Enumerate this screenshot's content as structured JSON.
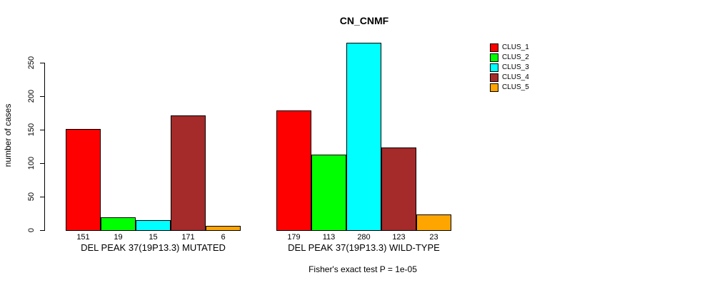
{
  "chart_data": {
    "type": "bar",
    "title": "CN_CNMF",
    "ylabel": "number of cases",
    "xlabel": "",
    "ylim": [
      0,
      250
    ],
    "yticks": [
      0,
      50,
      100,
      150,
      200,
      250
    ],
    "grid": false,
    "legend_position": "right",
    "bar_value_labels": true,
    "categories": [
      "DEL PEAK 37(19P13.3) MUTATED",
      "DEL PEAK 37(19P13.3) WILD-TYPE"
    ],
    "series": [
      {
        "name": "CLUS_1",
        "color": "#FF0000",
        "values": [
          151,
          179
        ]
      },
      {
        "name": "CLUS_2",
        "color": "#00FF00",
        "values": [
          19,
          113
        ]
      },
      {
        "name": "CLUS_3",
        "color": "#00FFFF",
        "values": [
          15,
          280
        ]
      },
      {
        "name": "CLUS_4",
        "color": "#A52A2A",
        "values": [
          171,
          123
        ]
      },
      {
        "name": "CLUS_5",
        "color": "#FFA500",
        "values": [
          6,
          23
        ]
      }
    ],
    "annotation": "Fisher's exact test P = 1e-05"
  }
}
